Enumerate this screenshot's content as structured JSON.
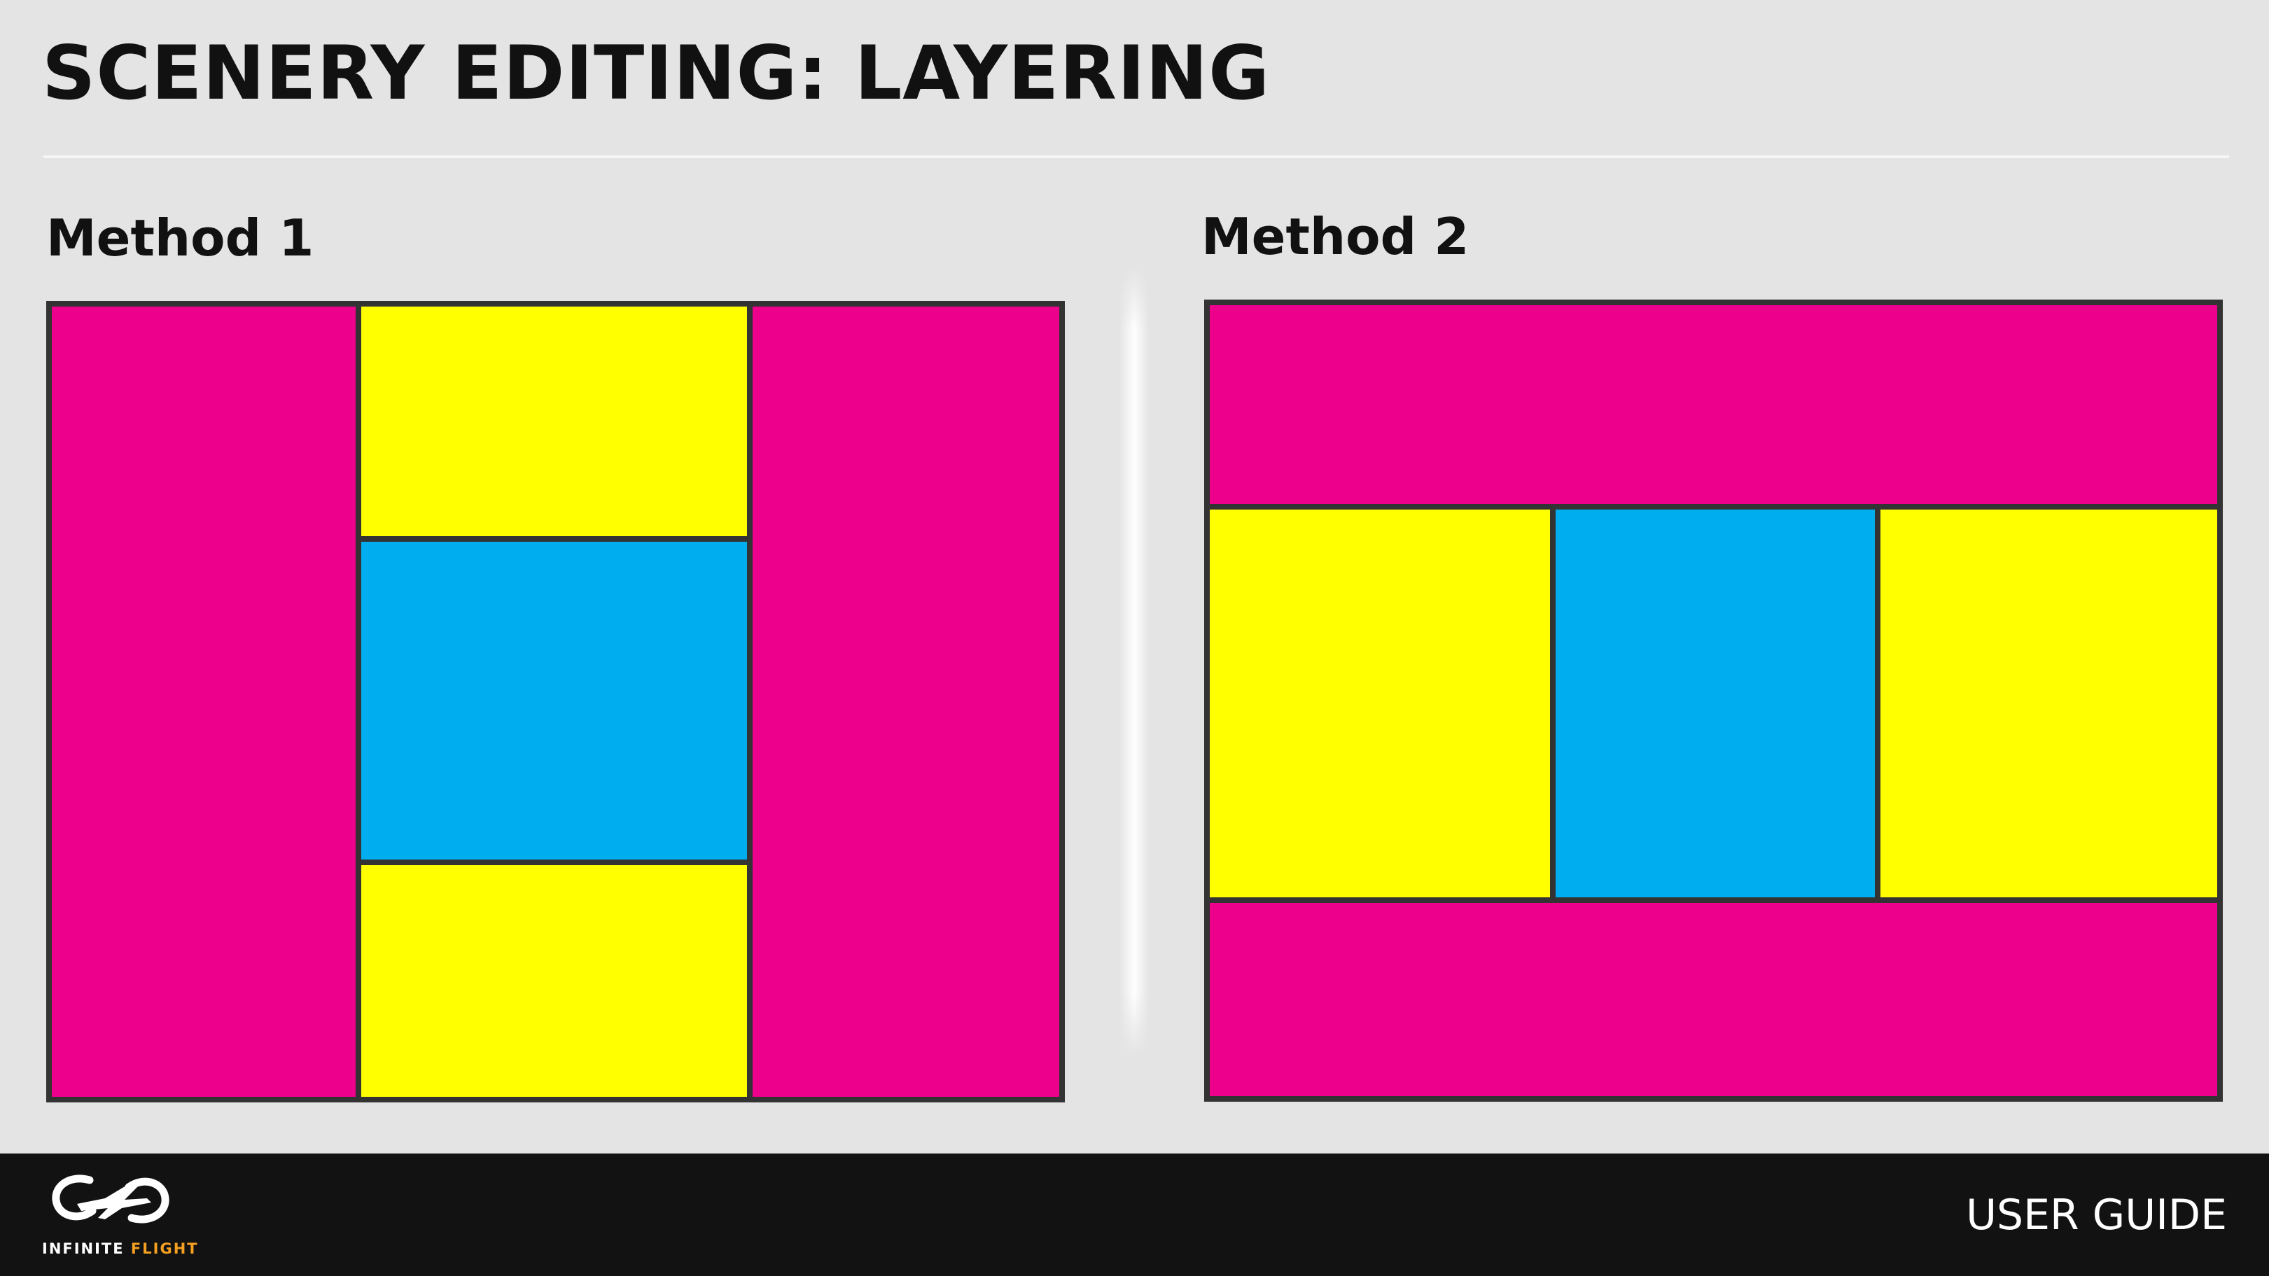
{
  "slide": {
    "title": "SCENERY EDITING: LAYERING"
  },
  "colors": {
    "background": "#e4e4e4",
    "magenta": "#ec008c",
    "yellow": "#ffff00",
    "cyan": "#00aeef",
    "outline": "#333333",
    "footer": "#121212",
    "brand_accent": "#f5a021"
  },
  "methods": [
    {
      "label": "Method 1",
      "layout": "vertical-strips",
      "cells": [
        {
          "name": "left-strip",
          "color": "magenta"
        },
        {
          "name": "center-top",
          "color": "yellow"
        },
        {
          "name": "center-middle",
          "color": "cyan"
        },
        {
          "name": "center-bottom",
          "color": "yellow"
        },
        {
          "name": "right-strip",
          "color": "magenta"
        }
      ]
    },
    {
      "label": "Method 2",
      "layout": "horizontal-bands",
      "cells": [
        {
          "name": "top-band",
          "color": "magenta"
        },
        {
          "name": "middle-left",
          "color": "yellow"
        },
        {
          "name": "middle-center",
          "color": "cyan"
        },
        {
          "name": "middle-right",
          "color": "yellow"
        },
        {
          "name": "bottom-band",
          "color": "magenta"
        }
      ]
    }
  ],
  "footer": {
    "logo_icon": "infinite-flight-logo-icon",
    "logo_text_primary": "INFINITE",
    "logo_text_accent": "FLIGHT",
    "label": "USER GUIDE"
  }
}
